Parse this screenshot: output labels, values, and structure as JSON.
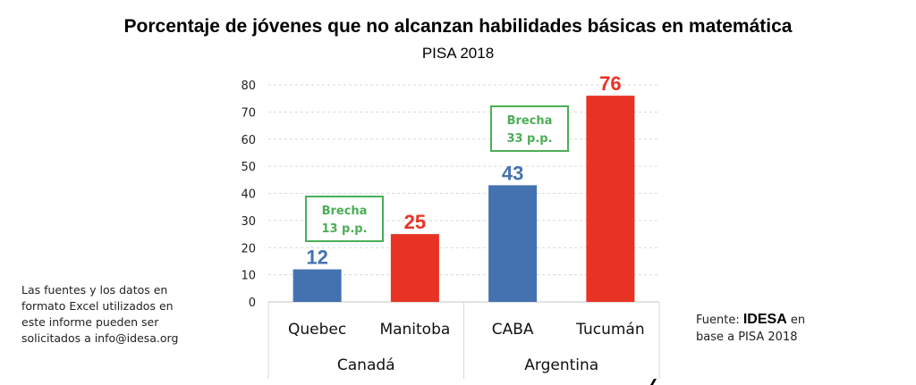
{
  "chart_data": {
    "type": "bar",
    "title": "Porcentaje de jóvenes que no alcanzan habilidades básicas en matemática",
    "subtitle": "PISA 2018",
    "xlabel": "",
    "ylabel": "",
    "ylim": [
      0,
      80
    ],
    "yticks": [
      "0",
      "10",
      "20",
      "30",
      "40",
      "50",
      "60",
      "70",
      "80"
    ],
    "grid": true,
    "categories": [
      "Quebec",
      "Manitoba",
      "CABA",
      "Tucumán"
    ],
    "groups": [
      {
        "label": "Canadá",
        "categories": [
          "Quebec",
          "Manitoba"
        ]
      },
      {
        "label": "Argentina",
        "categories": [
          "CABA",
          "Tucumán"
        ]
      }
    ],
    "values": [
      12,
      25,
      43,
      76
    ],
    "data_labels": [
      "12",
      "25",
      "43",
      "76"
    ],
    "bar_colors": [
      "#4472b0",
      "#e83324",
      "#4472b0",
      "#e83324"
    ],
    "annotations": [
      {
        "line1": "Brecha",
        "line2": "13 p.p.",
        "group": "Canadá"
      },
      {
        "line1": "Brecha",
        "line2": "33 p.p.",
        "group": "Argentina"
      }
    ],
    "annotation_color": "#4cae57"
  },
  "notes": {
    "left_lines": [
      "Las fuentes y los datos en",
      "formato Excel utilizados en",
      "este informe pueden ser",
      "solicitados a info@idesa.org"
    ],
    "source_prefix": "Fuente: ",
    "source_brand": "IDESA",
    "source_suffix": " en",
    "source_line2": "base a PISA 2018"
  }
}
